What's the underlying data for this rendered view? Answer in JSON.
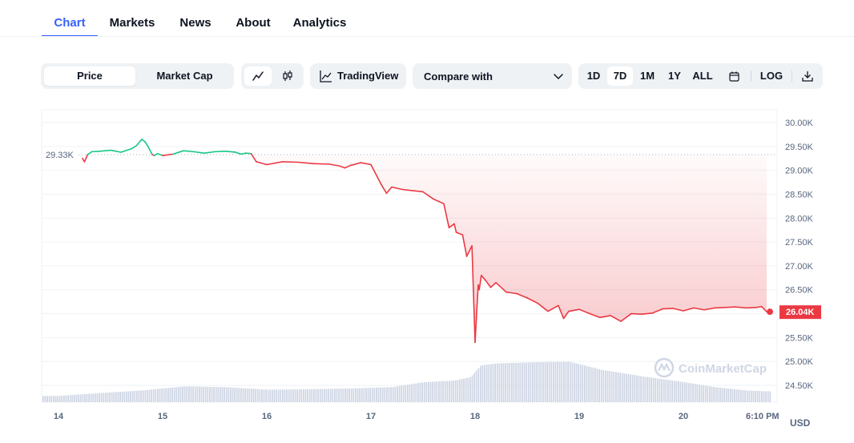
{
  "tabs": [
    {
      "label": "Chart",
      "active": true
    },
    {
      "label": "Markets",
      "active": false
    },
    {
      "label": "News",
      "active": false
    },
    {
      "label": "About",
      "active": false
    },
    {
      "label": "Analytics",
      "active": false
    }
  ],
  "toolbar": {
    "metric_toggle": {
      "options": [
        "Price",
        "Market Cap"
      ],
      "selected": "Price"
    },
    "chart_style": {
      "options": [
        "line-chart-icon",
        "candlestick-icon"
      ],
      "selected": "line-chart-icon"
    },
    "tradingview_label": "TradingView",
    "compare": {
      "label": "Compare with"
    },
    "ranges": [
      "1D",
      "7D",
      "1M",
      "1Y",
      "ALL"
    ],
    "selected_range": "7D",
    "log_label": "LOG",
    "icons": [
      "calendar-icon",
      "download-icon"
    ]
  },
  "colors": {
    "up": "#16c784",
    "down": "#ea3943",
    "accent": "#3861fb",
    "volume": "#cfd6e4"
  },
  "chart_data": {
    "type": "line",
    "currency_label": "USD",
    "reference_label": "29.33K",
    "reference_value": 29330,
    "last_price_label": "26.04K",
    "last_price": 26040,
    "watermark": "CoinMarketCap",
    "y_ticks": [
      "30.00K",
      "29.50K",
      "29.00K",
      "28.50K",
      "28.00K",
      "27.50K",
      "27.00K",
      "26.50K",
      "26.00K",
      "25.50K",
      "25.00K",
      "24.50K"
    ],
    "y_tick_values": [
      30000,
      29500,
      29000,
      28500,
      28000,
      27500,
      27000,
      26500,
      26000,
      25500,
      25000,
      24500
    ],
    "ylim": [
      24400,
      30100
    ],
    "x_ticks": [
      "14",
      "15",
      "16",
      "17",
      "18",
      "19",
      "20",
      "6:10 PM"
    ],
    "x_tick_days": [
      0,
      1,
      2,
      3,
      4,
      5,
      6,
      6.8
    ],
    "price_days": [
      0.23,
      0.25,
      0.28,
      0.32,
      0.4,
      0.5,
      0.6,
      0.7,
      0.75,
      0.8,
      0.83,
      0.86,
      0.9,
      0.92,
      0.95,
      1.0,
      1.1,
      1.2,
      1.3,
      1.4,
      1.5,
      1.6,
      1.7,
      1.75,
      1.8,
      1.85,
      1.9,
      2.0,
      2.15,
      2.3,
      2.45,
      2.6,
      2.7,
      2.75,
      2.8,
      2.9,
      3.0,
      3.1,
      3.15,
      3.2,
      3.3,
      3.5,
      3.6,
      3.7,
      3.75,
      3.8,
      3.82,
      3.88,
      3.92,
      3.97,
      4.0,
      4.02,
      4.03,
      4.04,
      4.06,
      4.1,
      4.15,
      4.2,
      4.3,
      4.4,
      4.5,
      4.6,
      4.7,
      4.8,
      4.85,
      4.9,
      5.0,
      5.1,
      5.2,
      5.3,
      5.4,
      5.5,
      5.6,
      5.7,
      5.8,
      5.9,
      6.0,
      6.1,
      6.2,
      6.3,
      6.4,
      6.5,
      6.6,
      6.7,
      6.75,
      6.8
    ],
    "price_values": [
      29250,
      29180,
      29330,
      29390,
      29400,
      29420,
      29380,
      29450,
      29520,
      29650,
      29600,
      29500,
      29330,
      29310,
      29350,
      29310,
      29340,
      29410,
      29390,
      29360,
      29390,
      29400,
      29380,
      29340,
      29360,
      29350,
      29180,
      29120,
      29180,
      29170,
      29140,
      29130,
      29090,
      29050,
      29100,
      29160,
      29120,
      28700,
      28520,
      28650,
      28600,
      28550,
      28400,
      28300,
      27800,
      27880,
      27700,
      27650,
      27200,
      27420,
      25400,
      26200,
      26600,
      26500,
      26800,
      26700,
      26550,
      26650,
      26450,
      26420,
      26330,
      26220,
      26050,
      26170,
      25900,
      26050,
      26090,
      26000,
      25920,
      25960,
      25840,
      26000,
      25990,
      26010,
      26100,
      26110,
      26060,
      26120,
      26080,
      26120,
      26130,
      26140,
      26120,
      26130,
      26150,
      26040
    ],
    "volume_days": [
      0.0,
      0.4,
      0.8,
      1.2,
      1.6,
      2.0,
      2.4,
      2.8,
      3.2,
      3.5,
      3.8,
      3.95,
      4.05,
      4.2,
      4.6,
      4.9,
      5.05,
      5.2,
      5.6,
      6.0,
      6.3,
      6.6,
      6.8
    ],
    "volume_values": [
      0.15,
      0.22,
      0.28,
      0.38,
      0.36,
      0.3,
      0.31,
      0.33,
      0.36,
      0.48,
      0.52,
      0.6,
      0.88,
      0.93,
      0.96,
      0.97,
      0.88,
      0.78,
      0.62,
      0.48,
      0.36,
      0.28,
      0.26
    ]
  }
}
